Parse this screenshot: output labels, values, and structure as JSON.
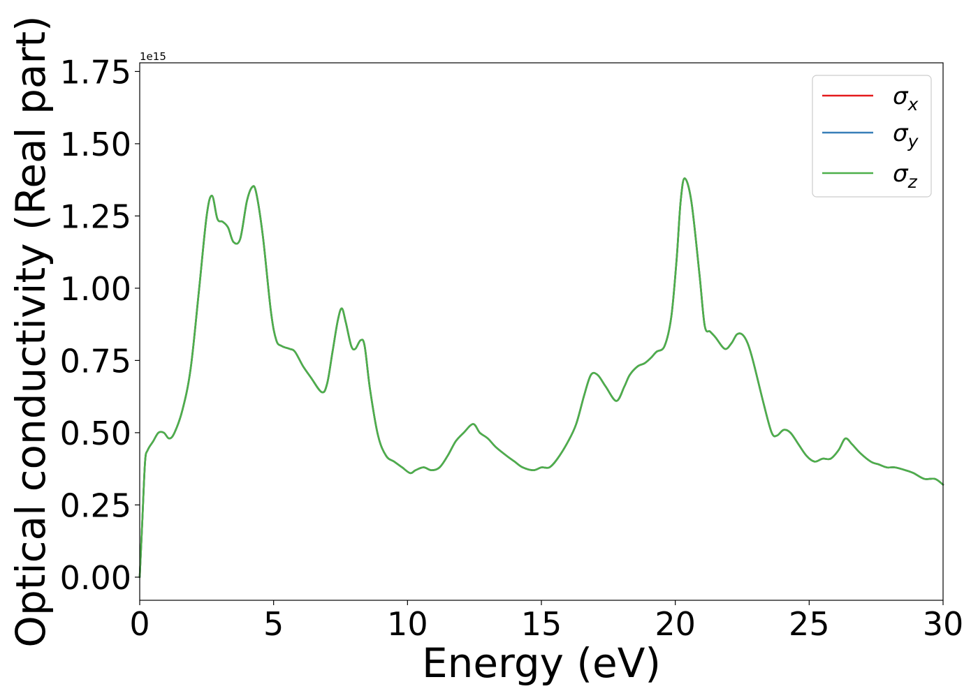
{
  "chart_data": {
    "type": "line",
    "xlabel": "Energy (eV)",
    "ylabel": "Optical conductivity (Real part)",
    "y_offset_label": "1e15",
    "xlim": [
      0,
      30
    ],
    "ylim": [
      -0.08,
      1.78
    ],
    "x_ticks": [
      0,
      5,
      10,
      15,
      20,
      25,
      30
    ],
    "x_tick_labels": [
      "0",
      "5",
      "10",
      "15",
      "20",
      "25",
      "30"
    ],
    "y_ticks": [
      0,
      0.25,
      0.5,
      0.75,
      1.0,
      1.25,
      1.5,
      1.75
    ],
    "y_tick_labels": [
      "0.00",
      "0.25",
      "0.50",
      "0.75",
      "1.00",
      "1.25",
      "1.50",
      "1.75"
    ],
    "grid": false,
    "legend_position": "top-right",
    "legend_order": [
      "x",
      "y",
      "z"
    ],
    "series": [
      {
        "name": "σ",
        "subscript": "x",
        "color": "#e41a1c"
      },
      {
        "name": "σ",
        "subscript": "y",
        "color": "#377eb8"
      },
      {
        "name": "σ",
        "subscript": "z",
        "color": "#4daf4a"
      }
    ],
    "x": [
      0,
      0.1,
      0.2,
      0.3,
      0.5,
      0.7,
      0.9,
      1.1,
      1.3,
      1.6,
      1.9,
      2.2,
      2.5,
      2.7,
      2.9,
      3.1,
      3.3,
      3.5,
      3.75,
      4.0,
      4.2,
      4.35,
      4.6,
      4.9,
      5.1,
      5.3,
      5.6,
      5.8,
      6.1,
      6.4,
      6.8,
      7.0,
      7.2,
      7.4,
      7.55,
      7.7,
      7.9,
      8.05,
      8.25,
      8.4,
      8.6,
      8.9,
      9.2,
      9.5,
      9.8,
      10.1,
      10.3,
      10.6,
      10.9,
      11.2,
      11.5,
      11.8,
      12.1,
      12.45,
      12.7,
      13.0,
      13.3,
      13.7,
      14.0,
      14.3,
      14.7,
      15.0,
      15.3,
      15.6,
      16.0,
      16.3,
      16.6,
      16.85,
      17.1,
      17.4,
      17.8,
      18.1,
      18.3,
      18.6,
      18.85,
      19.1,
      19.3,
      19.6,
      19.85,
      20.05,
      20.2,
      20.35,
      20.6,
      20.9,
      21.1,
      21.3,
      21.5,
      21.85,
      22.1,
      22.3,
      22.5,
      22.7,
      22.9,
      23.3,
      23.6,
      23.8,
      24.05,
      24.3,
      24.6,
      24.9,
      25.2,
      25.5,
      25.8,
      26.1,
      26.35,
      26.6,
      26.9,
      27.3,
      27.6,
      27.9,
      28.2,
      28.6,
      28.9,
      29.3,
      29.7,
      30.0
    ],
    "values": [
      0.0,
      0.2,
      0.4,
      0.44,
      0.47,
      0.5,
      0.5,
      0.48,
      0.5,
      0.58,
      0.72,
      0.98,
      1.25,
      1.32,
      1.24,
      1.23,
      1.21,
      1.16,
      1.17,
      1.3,
      1.35,
      1.33,
      1.18,
      0.92,
      0.82,
      0.8,
      0.79,
      0.78,
      0.73,
      0.69,
      0.64,
      0.67,
      0.78,
      0.89,
      0.93,
      0.88,
      0.8,
      0.79,
      0.82,
      0.8,
      0.65,
      0.49,
      0.42,
      0.4,
      0.38,
      0.36,
      0.37,
      0.38,
      0.37,
      0.38,
      0.42,
      0.47,
      0.5,
      0.53,
      0.5,
      0.48,
      0.45,
      0.42,
      0.4,
      0.38,
      0.37,
      0.38,
      0.38,
      0.41,
      0.47,
      0.53,
      0.63,
      0.7,
      0.7,
      0.66,
      0.61,
      0.66,
      0.7,
      0.73,
      0.74,
      0.76,
      0.78,
      0.8,
      0.9,
      1.1,
      1.3,
      1.38,
      1.3,
      1.05,
      0.87,
      0.85,
      0.83,
      0.79,
      0.81,
      0.84,
      0.84,
      0.81,
      0.75,
      0.6,
      0.5,
      0.49,
      0.51,
      0.5,
      0.46,
      0.42,
      0.4,
      0.41,
      0.41,
      0.44,
      0.48,
      0.46,
      0.43,
      0.4,
      0.39,
      0.38,
      0.38,
      0.37,
      0.36,
      0.34,
      0.34,
      0.32
    ]
  }
}
